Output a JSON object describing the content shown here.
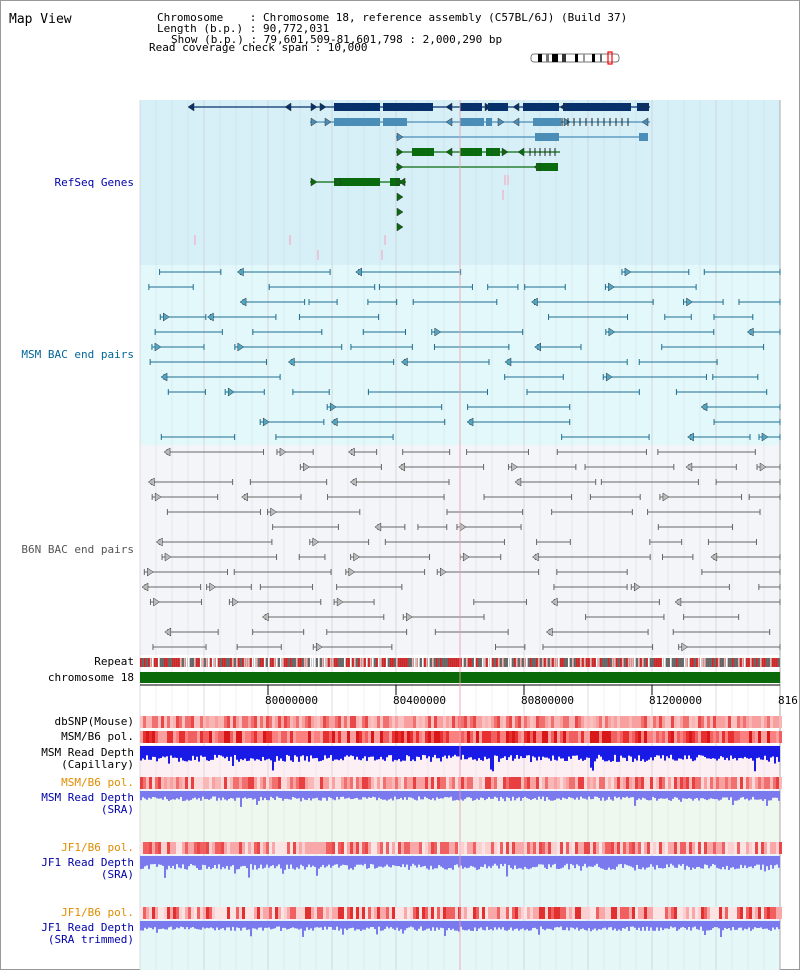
{
  "header": {
    "title": "Map View",
    "info_lines": [
      "Chromosome    : Chromosome 18, reference assembly (C57BL/6J) (Build 37)",
      "Length (b.p.) : 90,772,031",
      "Show (b.p.) : 79,601,509-81,601,798 : 2,000,290 bp",
      "Read coverage check span : 10,000"
    ]
  },
  "tracks": {
    "refseq": {
      "label": "RefSeq Genes"
    },
    "msm_bac": {
      "label": "MSM BAC end pairs"
    },
    "b6n_bac": {
      "label": "B6N BAC end pairs"
    },
    "repeat": {
      "label": "Repeat"
    },
    "chromosome": {
      "label": "chromosome 18"
    },
    "dbsnp": {
      "label": "dbSNP(Mouse)"
    },
    "msm_b6_pol_1": {
      "label": "MSM/B6 pol."
    },
    "msm_depth_cap": {
      "label_1": "MSM Read Depth",
      "label_2": "(Capillary)"
    },
    "msm_b6_pol_2": {
      "label": "MSM/B6 pol."
    },
    "msm_depth_sra": {
      "label_1": "MSM Read Depth",
      "label_2": "(SRA)"
    },
    "jf1_b6_pol_1": {
      "label": "JF1/B6 pol."
    },
    "jf1_depth_sra": {
      "label_1": "JF1 Read Depth",
      "label_2": "(SRA)"
    },
    "jf1_b6_pol_2": {
      "label": "JF1/B6 pol."
    },
    "jf1_depth_trim": {
      "label_1": "JF1 Read Depth",
      "label_2": "(SRA trimmed)"
    }
  },
  "axis": {
    "ticks": [
      "80000000",
      "80400000",
      "80800000",
      "81200000",
      "816"
    ]
  },
  "colors": {
    "label_blue": "#0000aa",
    "label_teal": "#006699",
    "label_orange": "#e08c00",
    "refseq_bg": "#d7f0f8",
    "msm_bg": "#e2f8fa",
    "b6n_bg": "#f3f5f8",
    "gene_navy": "#06316a",
    "gene_blue": "#4a8db7",
    "gene_green": "#096b0d",
    "chromosome_green": "#0a6a0a",
    "depth_blue": "#1a1ae6",
    "depth_violet": "#7a7aee"
  }
}
